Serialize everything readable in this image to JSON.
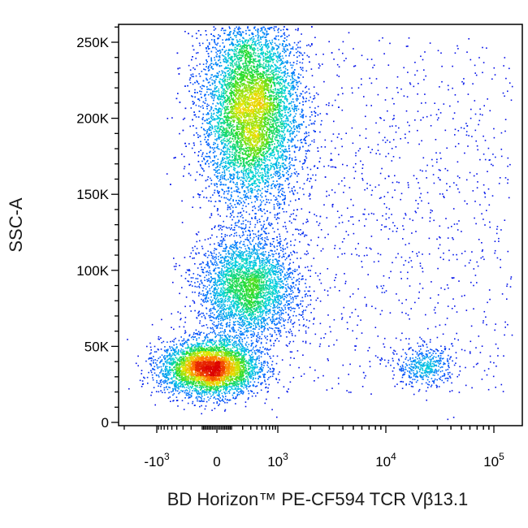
{
  "chart_data": {
    "type": "scatter",
    "style": "flow-cytometry pseudocolor density dot plot (blue = low density, green/yellow = medium, red = high)",
    "xlabel": "BD Horizon™ PE-CF594 TCR Vβ13.1",
    "ylabel": "SSC-A",
    "x_scale": "biexponential",
    "y_scale": "linear",
    "ylim": [
      0,
      262144
    ],
    "y_ticks": [
      {
        "value": 0,
        "label": "0"
      },
      {
        "value": 50000,
        "label": "50K"
      },
      {
        "value": 100000,
        "label": "100K"
      },
      {
        "value": 150000,
        "label": "150K"
      },
      {
        "value": 200000,
        "label": "200K"
      },
      {
        "value": 250000,
        "label": "250K"
      }
    ],
    "x_ticks": [
      {
        "value": -1000,
        "base": "-10",
        "exp": "3"
      },
      {
        "value": 0,
        "base": "0",
        "exp": ""
      },
      {
        "value": 1000,
        "base": "10",
        "exp": "3"
      },
      {
        "value": 10000,
        "base": "10",
        "exp": "4"
      },
      {
        "value": 100000,
        "base": "10",
        "exp": "5"
      }
    ],
    "populations": [
      {
        "x_center": 300,
        "y_center": 205000,
        "x_spread": 260,
        "y_spread": 32000,
        "events": 9000,
        "peak_density": "high"
      },
      {
        "x_center": 250,
        "y_center": 88000,
        "x_spread": 260,
        "y_spread": 17000,
        "events": 3400,
        "peak_density": "medium"
      },
      {
        "x_center": -50,
        "y_center": 36000,
        "x_spread": 240,
        "y_spread": 9000,
        "events": 4200,
        "peak_density": "high"
      },
      {
        "x_center": 23000,
        "y_center": 37000,
        "x_spread": 0.32,
        "y_spread": 6500,
        "events": 450,
        "peak_density": "low"
      }
    ],
    "grid": false,
    "legend": "none"
  }
}
